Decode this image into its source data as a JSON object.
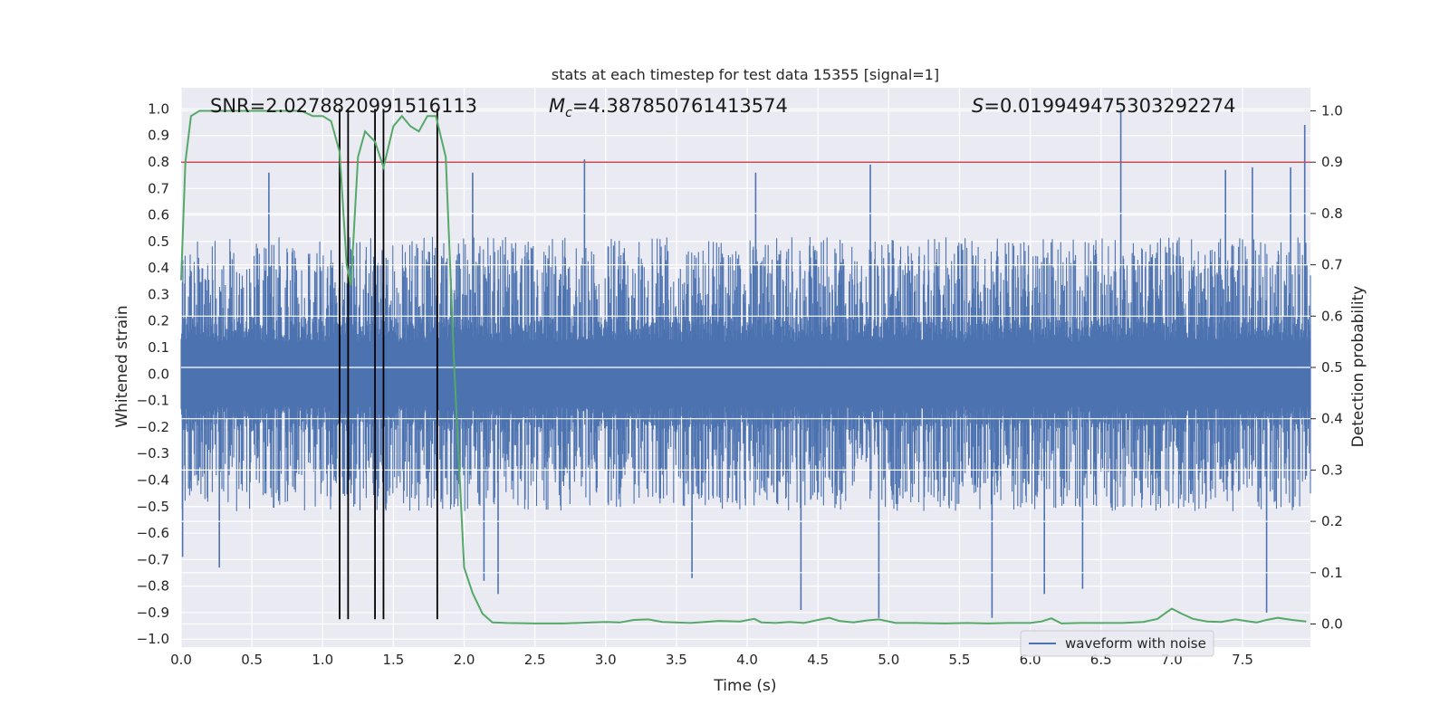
{
  "chart_data": {
    "type": "line",
    "title": "stats at each timestep for test data 15355 [signal=1]",
    "xlabel": "Time (s)",
    "ylabel": "Whitened strain",
    "ylabel_right": "Detection probability",
    "xlim": [
      0,
      7.98
    ],
    "ylim": [
      -1.03,
      1.08
    ],
    "ylim_right": [
      -0.045,
      1.045
    ],
    "x_ticks": [
      "0.0",
      "0.5",
      "1.0",
      "1.5",
      "2.0",
      "2.5",
      "3.0",
      "3.5",
      "4.0",
      "4.5",
      "5.0",
      "5.5",
      "6.0",
      "6.5",
      "7.0",
      "7.5"
    ],
    "y_ticks": [
      "1.0",
      "0.9",
      "0.8",
      "0.7",
      "0.6",
      "0.5",
      "0.4",
      "0.3",
      "0.2",
      "0.1",
      "0.0",
      "−0.1",
      "−0.2",
      "−0.3",
      "−0.4",
      "−0.5",
      "−0.6",
      "−0.7",
      "−0.8",
      "−0.9",
      "−1.0"
    ],
    "y_ticks_right": [
      "1.0",
      "0.9",
      "0.8",
      "0.7",
      "0.6",
      "0.5",
      "0.4",
      "0.3",
      "0.2",
      "0.1",
      "0.0"
    ],
    "grid": true,
    "legend_position": "lower-right",
    "annotations": {
      "snr": "SNR=2.0278820991516113",
      "mc_label": "M",
      "mc_sub": "c",
      "mc_value": "=4.387850761413574",
      "s_label": "S",
      "s_value": "=0.019949475303292274"
    },
    "threshold_line": {
      "y_right": 0.9,
      "color": "#c44e52"
    },
    "vertical_markers": {
      "x": [
        1.12,
        1.18,
        1.37,
        1.43,
        1.81
      ],
      "color": "#000000"
    },
    "series": [
      {
        "name": "waveform with noise",
        "color": "#4c72b0",
        "axis": "left",
        "dt": 0.004,
        "core_amplitude": 0.22,
        "envelope_amplitude": 0.45,
        "spikes": [
          {
            "x": 0.01,
            "y": -0.69
          },
          {
            "x": 0.27,
            "y": -0.73
          },
          {
            "x": 0.62,
            "y": 0.76
          },
          {
            "x": 2.06,
            "y": 0.76
          },
          {
            "x": 2.14,
            "y": -0.78
          },
          {
            "x": 2.24,
            "y": -0.83
          },
          {
            "x": 2.85,
            "y": 0.81
          },
          {
            "x": 3.61,
            "y": -0.77
          },
          {
            "x": 4.06,
            "y": 0.76
          },
          {
            "x": 4.38,
            "y": -0.89
          },
          {
            "x": 4.87,
            "y": 0.79
          },
          {
            "x": 4.93,
            "y": -0.92
          },
          {
            "x": 5.73,
            "y": -0.92
          },
          {
            "x": 6.1,
            "y": -0.83
          },
          {
            "x": 6.37,
            "y": -0.81
          },
          {
            "x": 6.64,
            "y": 1.0
          },
          {
            "x": 7.38,
            "y": 0.77
          },
          {
            "x": 7.57,
            "y": 0.78
          },
          {
            "x": 7.67,
            "y": -0.9
          },
          {
            "x": 7.84,
            "y": 0.78
          },
          {
            "x": 7.94,
            "y": 0.94
          }
        ]
      },
      {
        "name": "",
        "color": "#55a868",
        "axis": "right",
        "x": [
          0.0,
          0.03,
          0.07,
          0.13,
          0.2,
          0.3,
          0.5,
          0.7,
          0.85,
          0.93,
          1.0,
          1.06,
          1.12,
          1.17,
          1.2,
          1.25,
          1.3,
          1.37,
          1.43,
          1.5,
          1.56,
          1.62,
          1.68,
          1.74,
          1.8,
          1.87,
          1.93,
          2.0,
          2.06,
          2.13,
          2.2,
          2.3,
          2.5,
          2.7,
          2.9,
          3.0,
          3.1,
          3.2,
          3.3,
          3.4,
          3.6,
          3.8,
          3.95,
          4.05,
          4.1,
          4.2,
          4.3,
          4.4,
          4.5,
          4.58,
          4.65,
          4.75,
          4.85,
          4.93,
          5.05,
          5.2,
          5.4,
          5.55,
          5.7,
          5.85,
          6.0,
          6.08,
          6.15,
          6.22,
          6.35,
          6.5,
          6.65,
          6.8,
          6.9,
          6.95,
          7.0,
          7.07,
          7.15,
          7.25,
          7.35,
          7.45,
          7.55,
          7.6,
          7.67,
          7.75,
          7.85,
          7.95
        ],
        "y": [
          0.67,
          0.9,
          0.99,
          1.0,
          1.0,
          1.0,
          1.0,
          1.0,
          1.0,
          0.99,
          0.99,
          0.98,
          0.92,
          0.7,
          0.66,
          0.91,
          0.96,
          0.94,
          0.89,
          0.97,
          0.99,
          0.97,
          0.96,
          0.99,
          0.99,
          0.91,
          0.5,
          0.11,
          0.06,
          0.02,
          0.003,
          0.002,
          0.001,
          0.001,
          0.003,
          0.004,
          0.003,
          0.008,
          0.009,
          0.004,
          0.002,
          0.006,
          0.005,
          0.01,
          0.003,
          0.002,
          0.004,
          0.002,
          0.008,
          0.012,
          0.006,
          0.003,
          0.007,
          0.009,
          0.002,
          0.002,
          0.001,
          0.002,
          0.001,
          0.002,
          0.002,
          0.005,
          0.011,
          0.001,
          0.002,
          0.002,
          0.002,
          0.004,
          0.01,
          0.02,
          0.03,
          0.02,
          0.01,
          0.005,
          0.004,
          0.009,
          0.005,
          0.003,
          0.008,
          0.012,
          0.008,
          0.005
        ]
      }
    ]
  }
}
